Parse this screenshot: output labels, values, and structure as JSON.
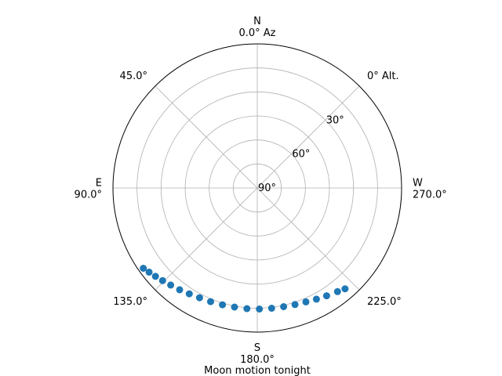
{
  "chart_data": {
    "type": "scatter",
    "projection": "polar",
    "theta_direction": "counterclockwise",
    "theta_zero": "N",
    "xlabel": "Moon motion tonight",
    "angle_labels": [
      {
        "deg": 0,
        "cardinal": "N",
        "label": "0.0° Az"
      },
      {
        "deg": 45,
        "cardinal": "",
        "label": "45.0°"
      },
      {
        "deg": 90,
        "cardinal": "E",
        "label": "90.0°"
      },
      {
        "deg": 135,
        "cardinal": "",
        "label": "135.0°"
      },
      {
        "deg": 180,
        "cardinal": "S",
        "label": "180.0°"
      },
      {
        "deg": 225,
        "cardinal": "",
        "label": "225.0°"
      },
      {
        "deg": 270,
        "cardinal": "W",
        "label": "270.0°"
      },
      {
        "deg": 315,
        "cardinal": "",
        "label": "0° Alt."
      }
    ],
    "radial_ticks": [
      {
        "altitude": 30,
        "label": "30°"
      },
      {
        "altitude": 60,
        "label": "60°"
      },
      {
        "altitude": 90,
        "label": "90°"
      }
    ],
    "altitude_range": [
      0,
      90
    ],
    "grid": true,
    "marker_color": "#1f77b4",
    "series": [
      {
        "azimuth": [
          125.2,
          127.9,
          131.0,
          134.4,
          138.3,
          142.7,
          147.3,
          152.3,
          157.7,
          163.4,
          169.2,
          175.1,
          181.0,
          186.8,
          192.5,
          197.9,
          203.1,
          208.0,
          212.7,
          217.7,
          221.0
        ],
        "altitude": [
          3.0,
          4.5,
          5.9,
          7.4,
          8.8,
          10.1,
          11.5,
          12.6,
          13.3,
          13.9,
          14.3,
          14.4,
          14.4,
          14.4,
          14.1,
          13.5,
          12.7,
          11.4,
          10.0,
          8.2,
          6.6
        ]
      }
    ]
  }
}
